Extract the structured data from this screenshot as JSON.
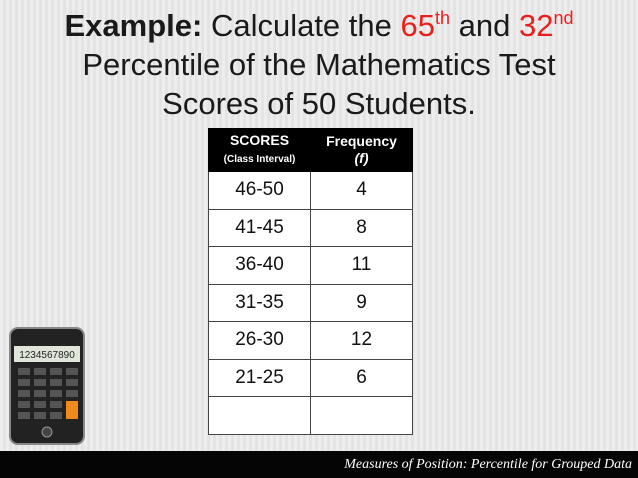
{
  "title": {
    "label": "Example:",
    "text1": "Calculate the",
    "n1": "65",
    "s1": "th",
    "text2": "and",
    "n2": "32",
    "s2": "nd",
    "line2": "Percentile of the Mathematics Test",
    "line3": "Scores of 50 Students."
  },
  "table": {
    "header": {
      "scores": "SCORES",
      "scores_sub": "(Class Interval)",
      "freq": "Frequency",
      "freq_sub": "(f)"
    },
    "rows": [
      [
        "46-50",
        4
      ],
      [
        "41-45",
        8
      ],
      [
        "36-40",
        11
      ],
      [
        "31-35",
        9
      ],
      [
        "26-30",
        12
      ],
      [
        "21-25",
        6
      ]
    ]
  },
  "calculator": {
    "display": "1234567890"
  },
  "footer": {
    "text": "Measures of Position: Percentile for Grouped Data"
  }
}
